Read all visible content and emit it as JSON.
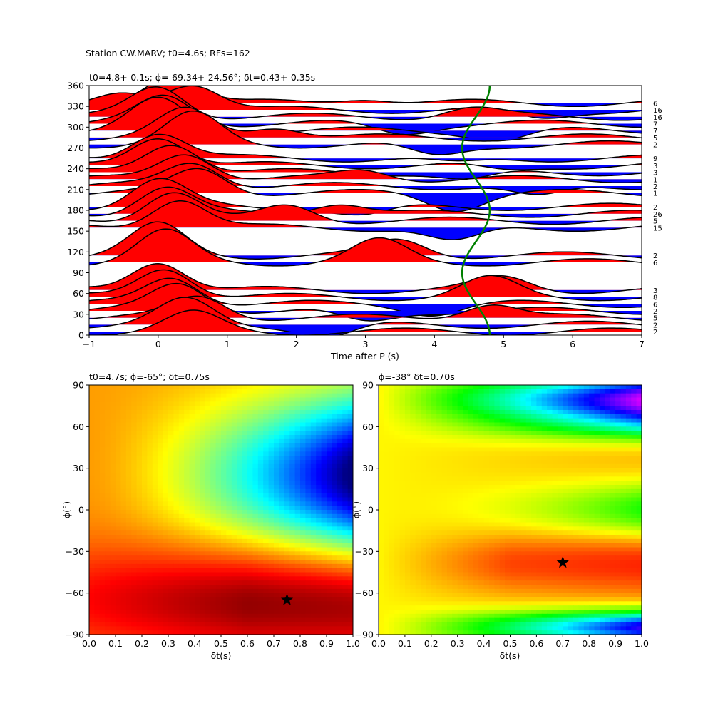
{
  "suptitle": "Station CW.MARV; t0=4.6s; RFs=162",
  "chart_data": [
    {
      "type": "line",
      "title": "t0=4.8+-0.1s; ϕ=-69.34+-24.56°; δt=0.43+-0.35s",
      "xlabel": "Time after P (s)",
      "ylabel": "",
      "xlim": [
        -1,
        7
      ],
      "ylim": [
        0,
        360
      ],
      "xticks": [
        "−1",
        "0",
        "1",
        "2",
        "3",
        "4",
        "5",
        "6",
        "7"
      ],
      "yticks": [
        "0",
        "30",
        "60",
        "90",
        "120",
        "150",
        "180",
        "210",
        "240",
        "270",
        "300",
        "330",
        "360"
      ],
      "fill_positive_color": "#ff0000",
      "fill_negative_color": "#0000ff",
      "trace_color": "#000000",
      "predicted_curve_color": "#008000",
      "predicted_curve": {
        "center_s": 4.6,
        "amplitude_s": 0.2,
        "period_deg": 180,
        "peak_at_deg": 180
      },
      "counts_label_suffix": "",
      "traces": [
        {
          "baz": 5,
          "count": "2",
          "peaks": [
            [
              0.5,
              0.6
            ]
          ]
        },
        {
          "baz": 15,
          "count": "2",
          "peaks": [
            [
              0.4,
              0.8
            ],
            [
              2.5,
              -0.4
            ]
          ]
        },
        {
          "baz": 25,
          "count": "5",
          "peaks": [
            [
              0.6,
              0.7
            ],
            [
              4.8,
              0.5
            ]
          ]
        },
        {
          "baz": 35,
          "count": "2",
          "peaks": [
            [
              0.3,
              0.9
            ],
            [
              3.0,
              -0.4
            ]
          ]
        },
        {
          "baz": 45,
          "count": "6",
          "peaks": [
            [
              0.2,
              0.9
            ],
            [
              4.0,
              -0.3
            ]
          ]
        },
        {
          "baz": 55,
          "count": "8",
          "peaks": [
            [
              0.1,
              1.0
            ],
            [
              4.8,
              0.6
            ]
          ]
        },
        {
          "baz": 65,
          "count": "3",
          "peaks": [
            [
              0.0,
              1.0
            ],
            [
              5.0,
              0.4
            ]
          ]
        },
        {
          "baz": 105,
          "count": "6",
          "peaks": [
            [
              0.1,
              1.0
            ],
            [
              3.2,
              0.7
            ]
          ]
        },
        {
          "baz": 115,
          "count": "2",
          "peaks": [
            [
              0.0,
              1.0
            ],
            [
              3.5,
              0.5
            ]
          ]
        },
        {
          "baz": 155,
          "count": "15",
          "peaks": [
            [
              0.3,
              1.0
            ],
            [
              4.3,
              -0.5
            ]
          ]
        },
        {
          "baz": 165,
          "count": "5",
          "peaks": [
            [
              0.2,
              1.0
            ],
            [
              1.9,
              0.5
            ]
          ]
        },
        {
          "baz": 175,
          "count": "26",
          "peaks": [
            [
              0.1,
              0.9
            ],
            [
              2.6,
              0.4
            ]
          ]
        },
        {
          "baz": 185,
          "count": "2",
          "peaks": [
            [
              0.0,
              0.9
            ],
            [
              3.0,
              -0.3
            ]
          ]
        },
        {
          "baz": 205,
          "count": "1",
          "peaks": [
            [
              0.6,
              0.8
            ],
            [
              4.3,
              -0.5
            ]
          ]
        },
        {
          "baz": 215,
          "count": "2",
          "peaks": [
            [
              0.5,
              0.8
            ],
            [
              5.5,
              -0.4
            ]
          ]
        },
        {
          "baz": 225,
          "count": "1",
          "peaks": [
            [
              0.4,
              0.9
            ],
            [
              3.0,
              0.3
            ]
          ]
        },
        {
          "baz": 235,
          "count": "3",
          "peaks": [
            [
              0.2,
              1.0
            ],
            [
              4.5,
              -0.3
            ]
          ]
        },
        {
          "baz": 245,
          "count": "3",
          "peaks": [
            [
              0.0,
              1.0
            ],
            [
              5.0,
              -0.2
            ]
          ]
        },
        {
          "baz": 255,
          "count": "9",
          "peaks": [
            [
              0.0,
              0.9
            ],
            [
              4.3,
              -0.2
            ]
          ]
        },
        {
          "baz": 275,
          "count": "2",
          "peaks": [
            [
              0.5,
              1.0
            ],
            [
              4.0,
              -0.4
            ]
          ]
        },
        {
          "baz": 285,
          "count": "5",
          "peaks": [
            [
              0.4,
              0.9
            ],
            [
              1.7,
              0.4
            ]
          ]
        },
        {
          "baz": 295,
          "count": "7",
          "peaks": [
            [
              0.0,
              1.0
            ],
            [
              5.0,
              -0.3
            ]
          ]
        },
        {
          "baz": 305,
          "count": "7",
          "peaks": [
            [
              0.1,
              0.9
            ],
            [
              3.5,
              -0.3
            ]
          ]
        },
        {
          "baz": 315,
          "count": "16",
          "peaks": [
            [
              0.0,
              1.0
            ],
            [
              4.5,
              0.3
            ]
          ]
        },
        {
          "baz": 325,
          "count": "16",
          "peaks": [
            [
              -0.5,
              0.5
            ],
            [
              0.5,
              0.9
            ],
            [
              5.5,
              -0.3
            ]
          ]
        },
        {
          "baz": 335,
          "count": "6",
          "peaks": [
            [
              0.2,
              1.0
            ],
            [
              3.0,
              0.2
            ]
          ]
        }
      ]
    },
    {
      "type": "heatmap",
      "title": "t0=4.7s; ϕ=-65°; δt=0.75s",
      "xlabel": "δt(s)",
      "ylabel": "ϕ(°)",
      "xlim": [
        0,
        1
      ],
      "ylim": [
        -90,
        90
      ],
      "xticks": [
        "0.0",
        "0.1",
        "0.2",
        "0.3",
        "0.4",
        "0.5",
        "0.6",
        "0.7",
        "0.8",
        "0.9",
        "1.0"
      ],
      "yticks": [
        "−90",
        "−60",
        "−30",
        "0",
        "30",
        "60",
        "90"
      ],
      "colormap": "jet",
      "best": {
        "dt": 0.75,
        "phi": -65
      },
      "marker_color": "#000000"
    },
    {
      "type": "heatmap",
      "title": "ϕ=-38° δt=0.70s",
      "xlabel": "δt(s)",
      "ylabel": "ϕ(°)",
      "xlim": [
        0,
        1
      ],
      "ylim": [
        -90,
        90
      ],
      "xticks": [
        "0.0",
        "0.1",
        "0.2",
        "0.3",
        "0.4",
        "0.5",
        "0.6",
        "0.7",
        "0.8",
        "0.9",
        "1.0"
      ],
      "yticks": [
        "−90",
        "−60",
        "−30",
        "0",
        "30",
        "60",
        "90"
      ],
      "colormap": "hsv",
      "best": {
        "dt": 0.7,
        "phi": -38
      },
      "marker_color": "#000000"
    }
  ]
}
